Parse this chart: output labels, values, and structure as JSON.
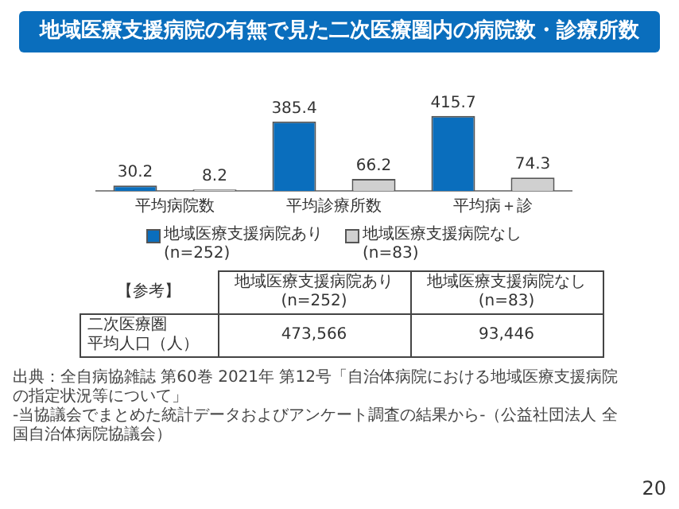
{
  "chart_data": {
    "type": "bar",
    "title": "地域医療支援病院の有無で見た二次医療圏内の病院数・診療所数",
    "categories": [
      "平均病院数",
      "平均診療所数",
      "平均病＋診"
    ],
    "series": [
      {
        "name": "地域医療支援病院あり\n(n=252)",
        "color": "#0a6ebd",
        "values": [
          30.2,
          385.4,
          415.7
        ]
      },
      {
        "name": "地域医療支援病院なし\n(n=83)",
        "color": "#d0d0d0",
        "values": [
          8.2,
          66.2,
          74.3
        ]
      }
    ],
    "data_labels": true,
    "legend": "bottom",
    "grid": false,
    "annotations": [
      "【参考】",
      "二次医療圏",
      "平均人口（人）",
      "473,566",
      "93,446",
      "出典：全自病協雑誌 第60巻 2021年 第12号「自治体病院における地域医療支援病院の指定状況等について」",
      "-当協議会でまとめた統計データおよびアンケート調査の結果から-（公益社団法人 全国自治体病院協議会）",
      "20"
    ]
  }
}
